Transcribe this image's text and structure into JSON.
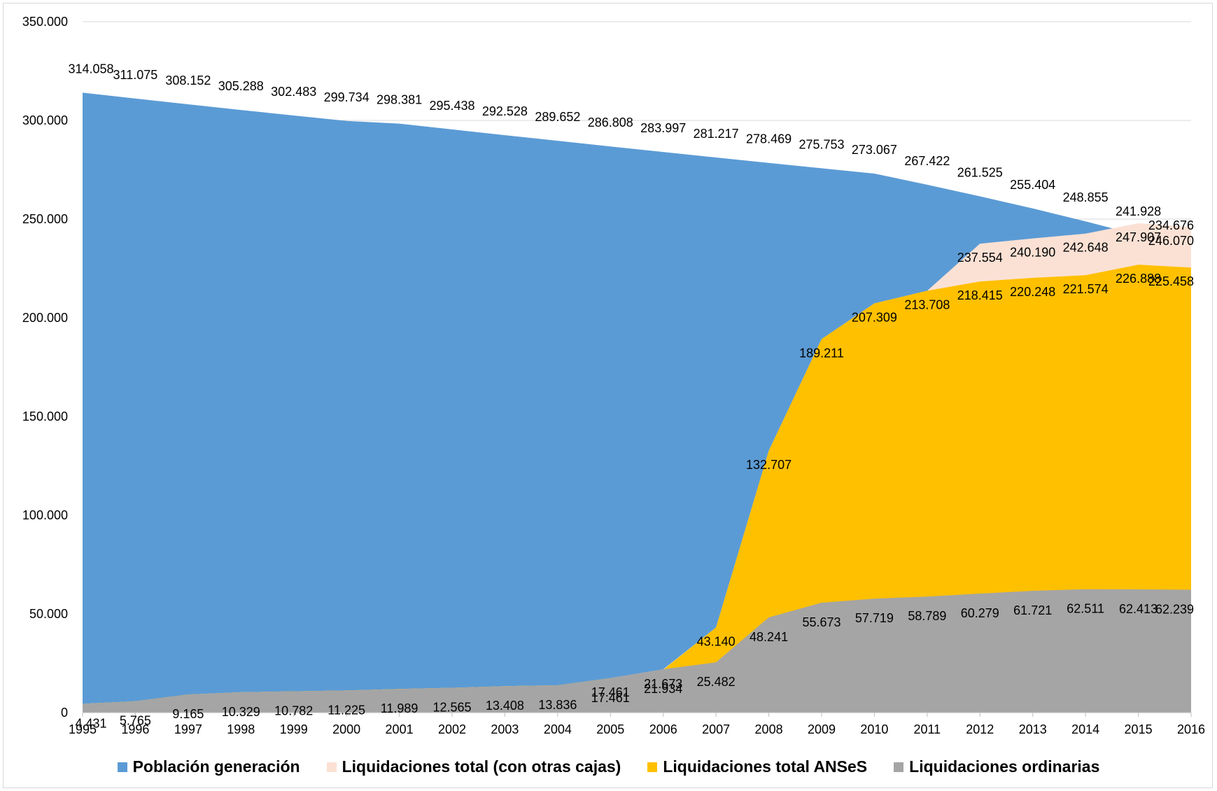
{
  "chart_data": {
    "type": "area",
    "title": "",
    "xlabel": "",
    "ylabel": "",
    "ylim": [
      0,
      350000
    ],
    "y_ticks": [
      0,
      50000,
      100000,
      150000,
      200000,
      250000,
      300000,
      350000
    ],
    "y_tick_labels": [
      "0",
      "50.000",
      "100.000",
      "150.000",
      "200.000",
      "250.000",
      "300.000",
      "350.000"
    ],
    "grid": true,
    "legend_position": "bottom",
    "categories": [
      "1995",
      "1996",
      "1997",
      "1998",
      "1999",
      "2000",
      "2001",
      "2002",
      "2003",
      "2004",
      "2005",
      "2006",
      "2007",
      "2008",
      "2009",
      "2010",
      "2011",
      "2012",
      "2013",
      "2014",
      "2015",
      "2016"
    ],
    "series": [
      {
        "name": "Población generación",
        "color": "#5b9bd5",
        "values": [
          314058,
          311075,
          308152,
          305288,
          302483,
          299734,
          298381,
          295438,
          292528,
          289652,
          286808,
          283997,
          281217,
          278469,
          275753,
          273067,
          267422,
          261525,
          255404,
          248855,
          241928,
          234676
        ],
        "labels": [
          "314.058",
          "311.075",
          "308.152",
          "305.288",
          "302.483",
          "299.734",
          "298.381",
          "295.438",
          "292.528",
          "289.652",
          "286.808",
          "283.997",
          "281.217",
          "278.469",
          "275.753",
          "273.067",
          "267.422",
          "261.525",
          "255.404",
          "248.855",
          "241.928",
          "234.676"
        ]
      },
      {
        "name": "Liquidaciones total (con otras cajas)",
        "color": "#fbe1d4",
        "values": [
          4431,
          5765,
          9165,
          10329,
          10782,
          11225,
          11989,
          12565,
          13408,
          13836,
          17461,
          21934,
          43140,
          132707,
          189211,
          207309,
          213708,
          237554,
          240190,
          242648,
          247907,
          246070
        ],
        "labels": [
          "",
          "",
          "",
          "",
          "",
          "",
          "",
          "",
          "",
          "",
          "",
          "",
          "",
          "",
          "",
          "",
          "",
          "237.554",
          "240.190",
          "242.648",
          "247.907",
          "246.070"
        ]
      },
      {
        "name": "Liquidaciones total ANSeS",
        "color": "#ffc000",
        "values": [
          4431,
          5765,
          9165,
          10329,
          10782,
          11225,
          11989,
          12565,
          13408,
          13836,
          17461,
          21673,
          43140,
          132707,
          189211,
          207309,
          213708,
          218415,
          220248,
          221574,
          226888,
          225458
        ],
        "labels": [
          "",
          "",
          "",
          "",
          "",
          "",
          "",
          "",
          "",
          "",
          "17.461",
          "21.673",
          "43.140",
          "132.707",
          "189.211",
          "207.309",
          "213.708",
          "218.415",
          "220.248",
          "221.574",
          "226.888",
          "225.458"
        ]
      },
      {
        "name": "Liquidaciones ordinarias",
        "color": "#a5a5a5",
        "values": [
          4431,
          5765,
          9165,
          10329,
          10782,
          11225,
          11989,
          12565,
          13408,
          13836,
          17461,
          21934,
          25482,
          48241,
          55673,
          57719,
          58789,
          60279,
          61721,
          62511,
          62413,
          62239
        ],
        "labels": [
          "4.431",
          "5.765",
          "9.165",
          "10.329",
          "10.782",
          "11.225",
          "11.989",
          "12.565",
          "13.408",
          "13.836",
          "17.461",
          "21.934",
          "25.482",
          "48.241",
          "55.673",
          "57.719",
          "58.789",
          "60.279",
          "61.721",
          "62.511",
          "62.413",
          "62.239"
        ]
      }
    ]
  }
}
